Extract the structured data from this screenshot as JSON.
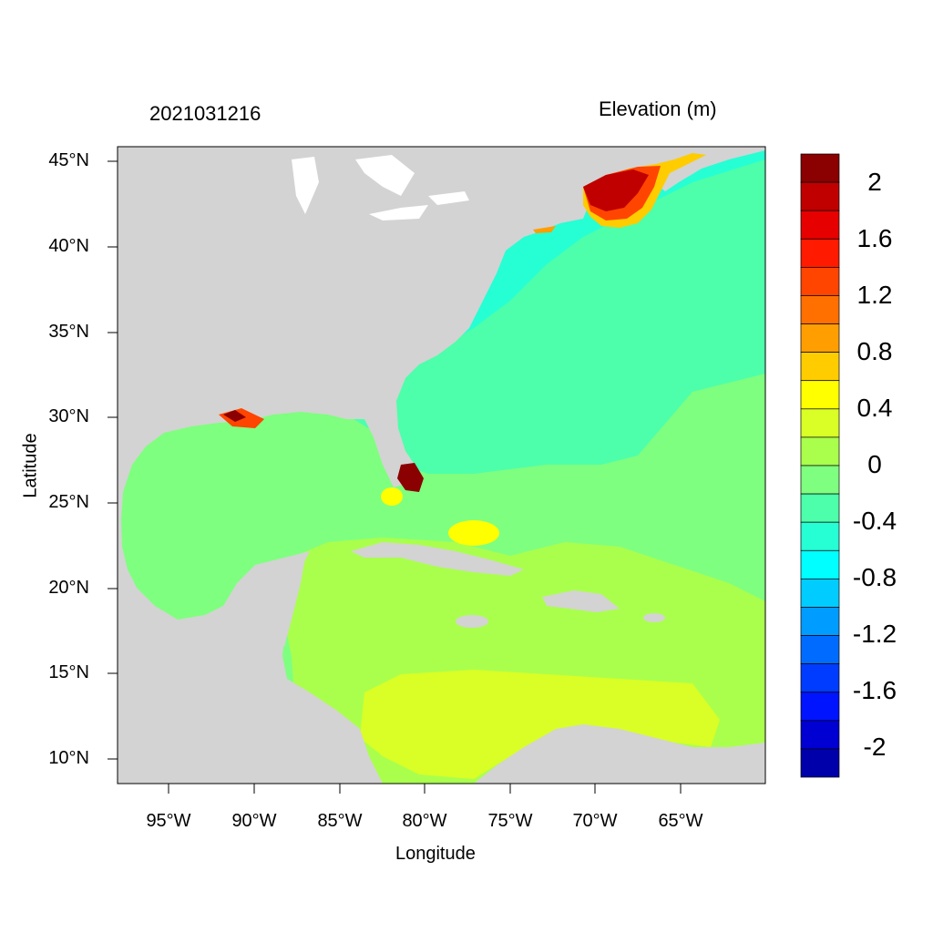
{
  "header": {
    "date_stamp": "2021031216",
    "variable_title": "Elevation (m)"
  },
  "axes": {
    "xlabel": "Longitude",
    "ylabel": "Latitude",
    "x_ticks": [
      "95°W",
      "90°W",
      "85°W",
      "80°W",
      "75°W",
      "70°W",
      "65°W"
    ],
    "y_ticks": [
      "45°N",
      "40°N",
      "35°N",
      "30°N",
      "25°N",
      "20°N",
      "15°N",
      "10°N"
    ],
    "x_tick_values": [
      -95,
      -90,
      -85,
      -80,
      -75,
      -70,
      -65
    ],
    "y_tick_values": [
      45,
      40,
      35,
      30,
      25,
      20,
      15,
      10
    ],
    "lon_range": [
      -98,
      -60
    ],
    "lat_range": [
      8.5,
      46
    ]
  },
  "colorbar": {
    "labels": [
      "2",
      "1.6",
      "1.2",
      "0.8",
      "0.4",
      "0",
      "-0.4",
      "-0.8",
      "-1.2",
      "-1.6",
      "-2"
    ],
    "colors": [
      "#8b0000",
      "#c00000",
      "#e60000",
      "#ff1a00",
      "#ff4500",
      "#ff7000",
      "#ff9e00",
      "#ffcc00",
      "#ffff00",
      "#d9ff26",
      "#aaff4d",
      "#7fff7f",
      "#4dffaa",
      "#26ffd4",
      "#00ffff",
      "#00ccff",
      "#009cff",
      "#006cff",
      "#003cff",
      "#0014ff",
      "#0000d2",
      "#0000aa"
    ]
  },
  "legend_colors": {
    "land": "#d3d3d3",
    "ocean_base": "#4dffaa",
    "gulf": "#7fff7f",
    "caribbean": "#aaff4d",
    "south_caribbean": "#d9ff26"
  }
}
